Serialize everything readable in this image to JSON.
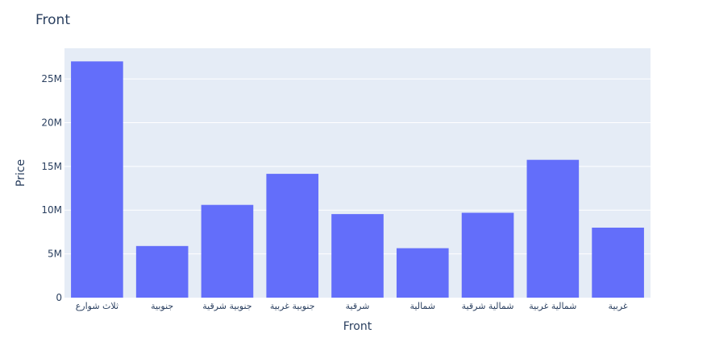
{
  "chart_data": {
    "type": "bar",
    "title": "Front",
    "xlabel": "Front",
    "ylabel": "Price",
    "categories": [
      "ثلاث شوارع",
      "جنوبية",
      "جنوبية شرقية",
      "جنوبية غربية",
      "شرقية",
      "شمالية",
      "شمالية شرقية",
      "شمالية غربية",
      "غربية"
    ],
    "values": [
      27000000,
      5900000,
      10600000,
      14150000,
      9550000,
      5650000,
      9700000,
      15750000,
      8000000
    ],
    "ylim": [
      0,
      28500000
    ],
    "yticks": [
      0,
      5000000,
      10000000,
      15000000,
      20000000,
      25000000
    ],
    "ytick_labels": [
      "0",
      "5M",
      "10M",
      "15M",
      "20M",
      "25M"
    ],
    "grid": true,
    "colors": {
      "bar": "#636efa",
      "plot_bg": "#e5ecf6",
      "grid": "#ffffff",
      "text": "#2a3f5f"
    }
  }
}
